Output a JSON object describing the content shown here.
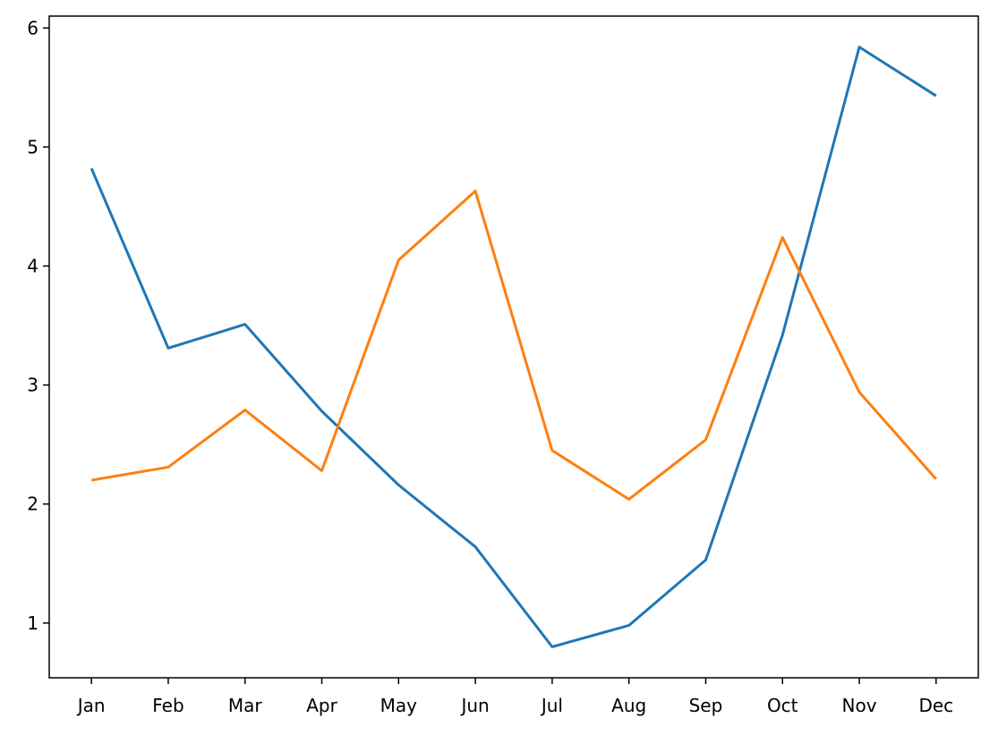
{
  "chart_data": {
    "type": "line",
    "categories": [
      "Jan",
      "Feb",
      "Mar",
      "Apr",
      "May",
      "Jun",
      "Jul",
      "Aug",
      "Sep",
      "Oct",
      "Nov",
      "Dec"
    ],
    "series": [
      {
        "color": "#1f77b4",
        "values": [
          4.82,
          3.31,
          3.51,
          2.78,
          2.16,
          1.64,
          0.8,
          0.98,
          1.53,
          3.42,
          5.84,
          5.43
        ]
      },
      {
        "color": "#ff7f0e",
        "values": [
          2.2,
          2.31,
          2.79,
          2.28,
          4.05,
          4.63,
          2.45,
          2.04,
          2.54,
          4.24,
          2.94,
          2.21
        ]
      }
    ],
    "ylim": [
      0.54,
      6.1
    ],
    "yticks": [
      1,
      2,
      3,
      4,
      5,
      6
    ],
    "grid": false
  }
}
